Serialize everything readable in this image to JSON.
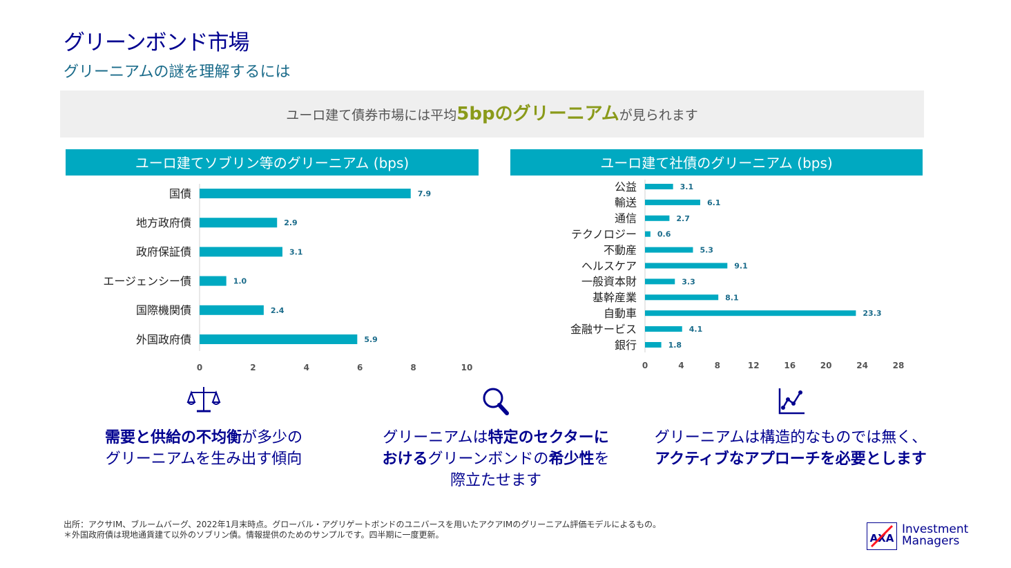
{
  "title": "グリーンボンド市場",
  "subtitle": "グリーニアムの謎を理解するには",
  "banner": {
    "prefix": "ユーロ建て債券市場には平均",
    "highlight": "5bpのグリーニアム",
    "suffix": "が見られます"
  },
  "colors": {
    "bar": "#00a9c1",
    "header": "#00a9c1",
    "navy": "#00008f",
    "highlight": "#8a9a1a"
  },
  "chart_data": [
    {
      "type": "bar",
      "orientation": "horizontal",
      "title": "ユーロ建てソブリン等のグリーニアム (bps)",
      "categories": [
        "国債",
        "地方政府債",
        "政府保証債",
        "エージェンシー債",
        "国際機関債",
        "外国政府債"
      ],
      "values": [
        7.9,
        2.9,
        3.1,
        1.0,
        2.4,
        5.9
      ],
      "value_labels": [
        "7.9",
        "2.9",
        "3.1",
        "1.0",
        "2.4",
        "5.9"
      ],
      "xlim": [
        0,
        10
      ],
      "ticks": [
        "0",
        "2",
        "4",
        "6",
        "8",
        "10"
      ],
      "grid": false
    },
    {
      "type": "bar",
      "orientation": "horizontal",
      "title": "ユーロ建て社債のグリーニアム (bps)",
      "categories": [
        "公益",
        "輸送",
        "通信",
        "テクノロジー",
        "不動産",
        "ヘルスケア",
        "一般資本財",
        "基幹産業",
        "自動車",
        "金融サービス",
        "銀行"
      ],
      "values": [
        3.1,
        6.1,
        2.7,
        0.6,
        5.3,
        9.1,
        3.3,
        8.1,
        23.3,
        4.1,
        1.8
      ],
      "value_labels": [
        "3.1",
        "6.1",
        "2.7",
        "0.6",
        "5.3",
        "9.1",
        "3.3",
        "8.1",
        "23.3",
        "4.1",
        "1.8"
      ],
      "xlim": [
        0,
        28
      ],
      "ticks": [
        "0",
        "4",
        "8",
        "12",
        "16",
        "20",
        "24",
        "28"
      ],
      "grid": false
    }
  ],
  "points": [
    {
      "icon": "scales-icon",
      "bold1": "需要と供給の不均衡",
      "text1": "が多少の",
      "line2": "グリーニアムを生み出す傾向"
    },
    {
      "icon": "magnifier-icon",
      "text1": "グリーニアムは",
      "bold1": "特定のセクターに",
      "bold2": "おける",
      "text2": "グリーンボンドの",
      "bold3": "希少性",
      "text3": "を",
      "line3": "際立たせます"
    },
    {
      "icon": "line-chart-icon",
      "line1": "グリーニアムは構造的なものでは無く、",
      "bold1": "アクティブなアプローチを必要とします"
    }
  ],
  "footnote": {
    "line1": "出所：アクサIM、ブルームバーグ、2022年1月末時点。グローバル・アグリゲートボンドのユニバースを用いたアクアIMのグリーニアム評価モデルによるもの。",
    "line2": "＊外国政府債は現地通貨建て以外のソブリン債。情報提供のためのサンプルです。四半期に一度更新。"
  },
  "logo": {
    "mark": "AXA",
    "line1": "Investment",
    "line2": "Managers"
  }
}
